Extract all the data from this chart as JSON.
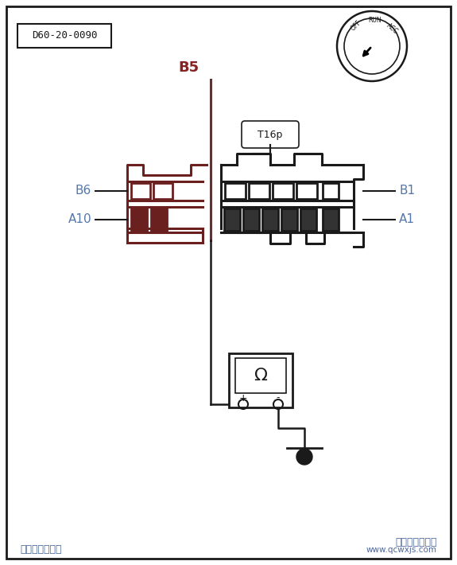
{
  "bg_color": "#ffffff",
  "border_color": "#1a1a1a",
  "label_code": "D60-20-0090",
  "connector_label": "T16p",
  "b5_label": "B5",
  "b6_label": "B6",
  "b1_label": "B1",
  "a10_label": "A10",
  "a1_label": "A1",
  "label_color_blue": "#5577aa",
  "label_color_dark": "#1a1a1a",
  "label_color_red": "#882222",
  "wire_color_v": "#5a3535",
  "footer_left": "汽车维修技术网",
  "footer_right": "汽车维修技术网",
  "footer_url": "www.qcwxjs.com",
  "conn_lw": 2.2,
  "pin_lw": 2.0
}
